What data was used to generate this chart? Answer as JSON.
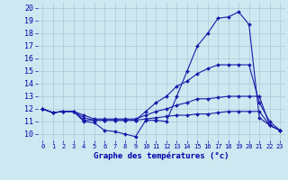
{
  "title": "Graphe des températures (°c)",
  "background_color": "#cde8f0",
  "grid_color": "#aac8d8",
  "line_color": "#1a1aaa",
  "x_hours": [
    0,
    1,
    2,
    3,
    4,
    5,
    6,
    7,
    8,
    9,
    10,
    11,
    12,
    13,
    14,
    15,
    16,
    17,
    18,
    19,
    20,
    21,
    22,
    23
  ],
  "series": [
    [
      12.0,
      11.7,
      11.8,
      11.8,
      11.0,
      10.9,
      10.3,
      10.2,
      10.0,
      9.8,
      11.1,
      11.1,
      11.0,
      13.0,
      15.0,
      17.0,
      18.0,
      19.2,
      19.3,
      19.7,
      18.7,
      11.3,
      10.7,
      10.3
    ],
    [
      12.0,
      11.7,
      11.8,
      11.8,
      11.1,
      11.1,
      11.1,
      11.1,
      11.1,
      11.1,
      11.8,
      12.5,
      13.0,
      13.8,
      14.2,
      14.8,
      15.2,
      15.5,
      15.5,
      15.5,
      15.5,
      12.5,
      11.0,
      10.3
    ],
    [
      12.0,
      11.7,
      11.8,
      11.8,
      11.5,
      11.2,
      11.2,
      11.2,
      11.2,
      11.2,
      11.5,
      11.8,
      12.0,
      12.3,
      12.5,
      12.8,
      12.8,
      12.9,
      13.0,
      13.0,
      13.0,
      13.0,
      10.7,
      10.3
    ],
    [
      12.0,
      11.7,
      11.8,
      11.8,
      11.3,
      11.1,
      11.1,
      11.1,
      11.1,
      11.1,
      11.2,
      11.3,
      11.4,
      11.5,
      11.5,
      11.6,
      11.6,
      11.7,
      11.8,
      11.8,
      11.8,
      11.8,
      10.7,
      10.3
    ]
  ],
  "ylim": [
    9.5,
    20.5
  ],
  "yticks": [
    10,
    11,
    12,
    13,
    14,
    15,
    16,
    17,
    18,
    19,
    20
  ],
  "xlim": [
    -0.5,
    23.5
  ],
  "xticks": [
    0,
    1,
    2,
    3,
    4,
    5,
    6,
    7,
    8,
    9,
    10,
    11,
    12,
    13,
    14,
    15,
    16,
    17,
    18,
    19,
    20,
    21,
    22,
    23
  ],
  "xlabel_fontsize": 6.5,
  "ytick_fontsize": 6,
  "xtick_fontsize": 5
}
